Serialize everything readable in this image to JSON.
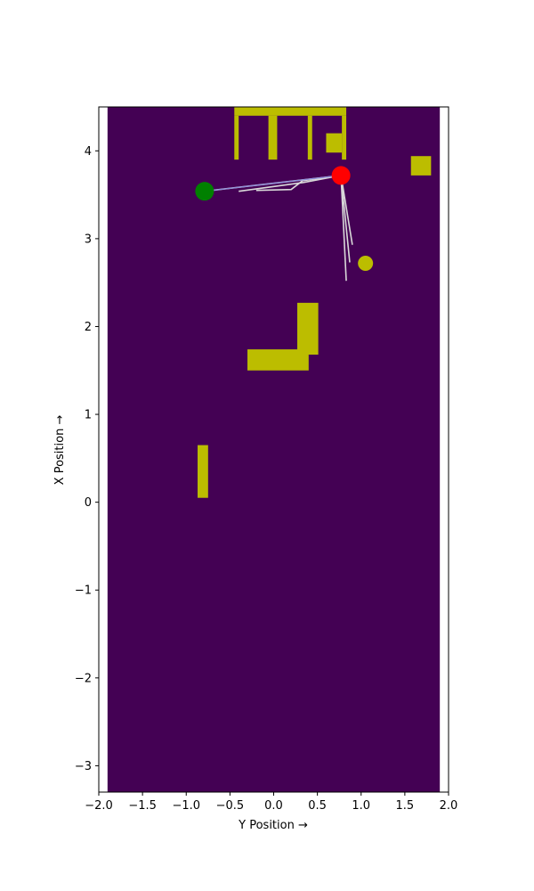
{
  "chart_data": {
    "type": "heatmap",
    "title": "",
    "xlabel": "Y Position →",
    "ylabel": "X Position →",
    "xlim": [
      -2.0,
      2.0
    ],
    "ylim": [
      -3.3,
      4.5
    ],
    "xticks": [
      -2.0,
      -1.5,
      -1.0,
      -0.5,
      0.0,
      0.5,
      1.0,
      1.5,
      2.0
    ],
    "xtick_labels": [
      "−2.0",
      "−1.5",
      "−1.0",
      "−0.5",
      "0.0",
      "0.5",
      "1.0",
      "1.5",
      "2.0"
    ],
    "yticks": [
      -3,
      -2,
      -1,
      0,
      1,
      2,
      3,
      4
    ],
    "ytick_labels": [
      "−3",
      "−2",
      "−1",
      "0",
      "1",
      "2",
      "3",
      "4"
    ],
    "grid": false,
    "colors": {
      "free_space": "#440154",
      "obstacle": "#bcbd00",
      "path": "#d9d9d9",
      "path_highlight": "#8b8bdb",
      "start": "#008000",
      "goal": "#ff0000",
      "marker": "#bcbd00"
    },
    "free_space": {
      "y": [
        -1.9,
        1.9
      ],
      "x": [
        -3.3,
        4.5
      ]
    },
    "obstacles": [
      {
        "y": [
          -0.45,
          0.83
        ],
        "x": [
          4.4,
          4.5
        ]
      },
      {
        "y": [
          -0.45,
          -0.4
        ],
        "x": [
          3.9,
          4.4
        ]
      },
      {
        "y": [
          -0.06,
          0.04
        ],
        "x": [
          3.9,
          4.4
        ]
      },
      {
        "y": [
          0.39,
          0.44
        ],
        "x": [
          3.9,
          4.4
        ]
      },
      {
        "y": [
          0.78,
          0.83
        ],
        "x": [
          3.9,
          4.4
        ]
      },
      {
        "y": [
          0.6,
          0.78
        ],
        "x": [
          3.98,
          4.2
        ]
      },
      {
        "y": [
          1.57,
          1.8
        ],
        "x": [
          3.72,
          3.94
        ]
      },
      {
        "y": [
          0.27,
          0.51
        ],
        "x": [
          1.68,
          2.27
        ]
      },
      {
        "y": [
          -0.3,
          0.4
        ],
        "x": [
          1.5,
          1.74
        ]
      },
      {
        "y": [
          -0.87,
          -0.75
        ],
        "x": [
          0.05,
          0.65
        ]
      }
    ],
    "markers": [
      {
        "role": "start",
        "y": -0.79,
        "x": 3.54
      },
      {
        "role": "goal",
        "y": 0.77,
        "x": 3.72
      },
      {
        "role": "obstacle-point",
        "y": 1.05,
        "x": 2.72
      }
    ],
    "paths": [
      [
        [
          0.77,
          3.72
        ],
        [
          -0.79,
          3.54
        ]
      ],
      [
        [
          0.77,
          3.72
        ],
        [
          0.33,
          3.66
        ],
        [
          0.2,
          3.56
        ],
        [
          -0.2,
          3.55
        ]
      ],
      [
        [
          0.77,
          3.72
        ],
        [
          0.34,
          3.64
        ],
        [
          -0.4,
          3.54
        ]
      ],
      [
        [
          0.77,
          3.72
        ],
        [
          0.83,
          2.52
        ]
      ],
      [
        [
          0.77,
          3.72
        ],
        [
          0.9,
          2.93
        ]
      ],
      [
        [
          0.77,
          3.72
        ],
        [
          0.87,
          2.73
        ]
      ]
    ],
    "highlight_path": [
      [
        0.77,
        3.72
      ],
      [
        -0.79,
        3.54
      ]
    ]
  }
}
